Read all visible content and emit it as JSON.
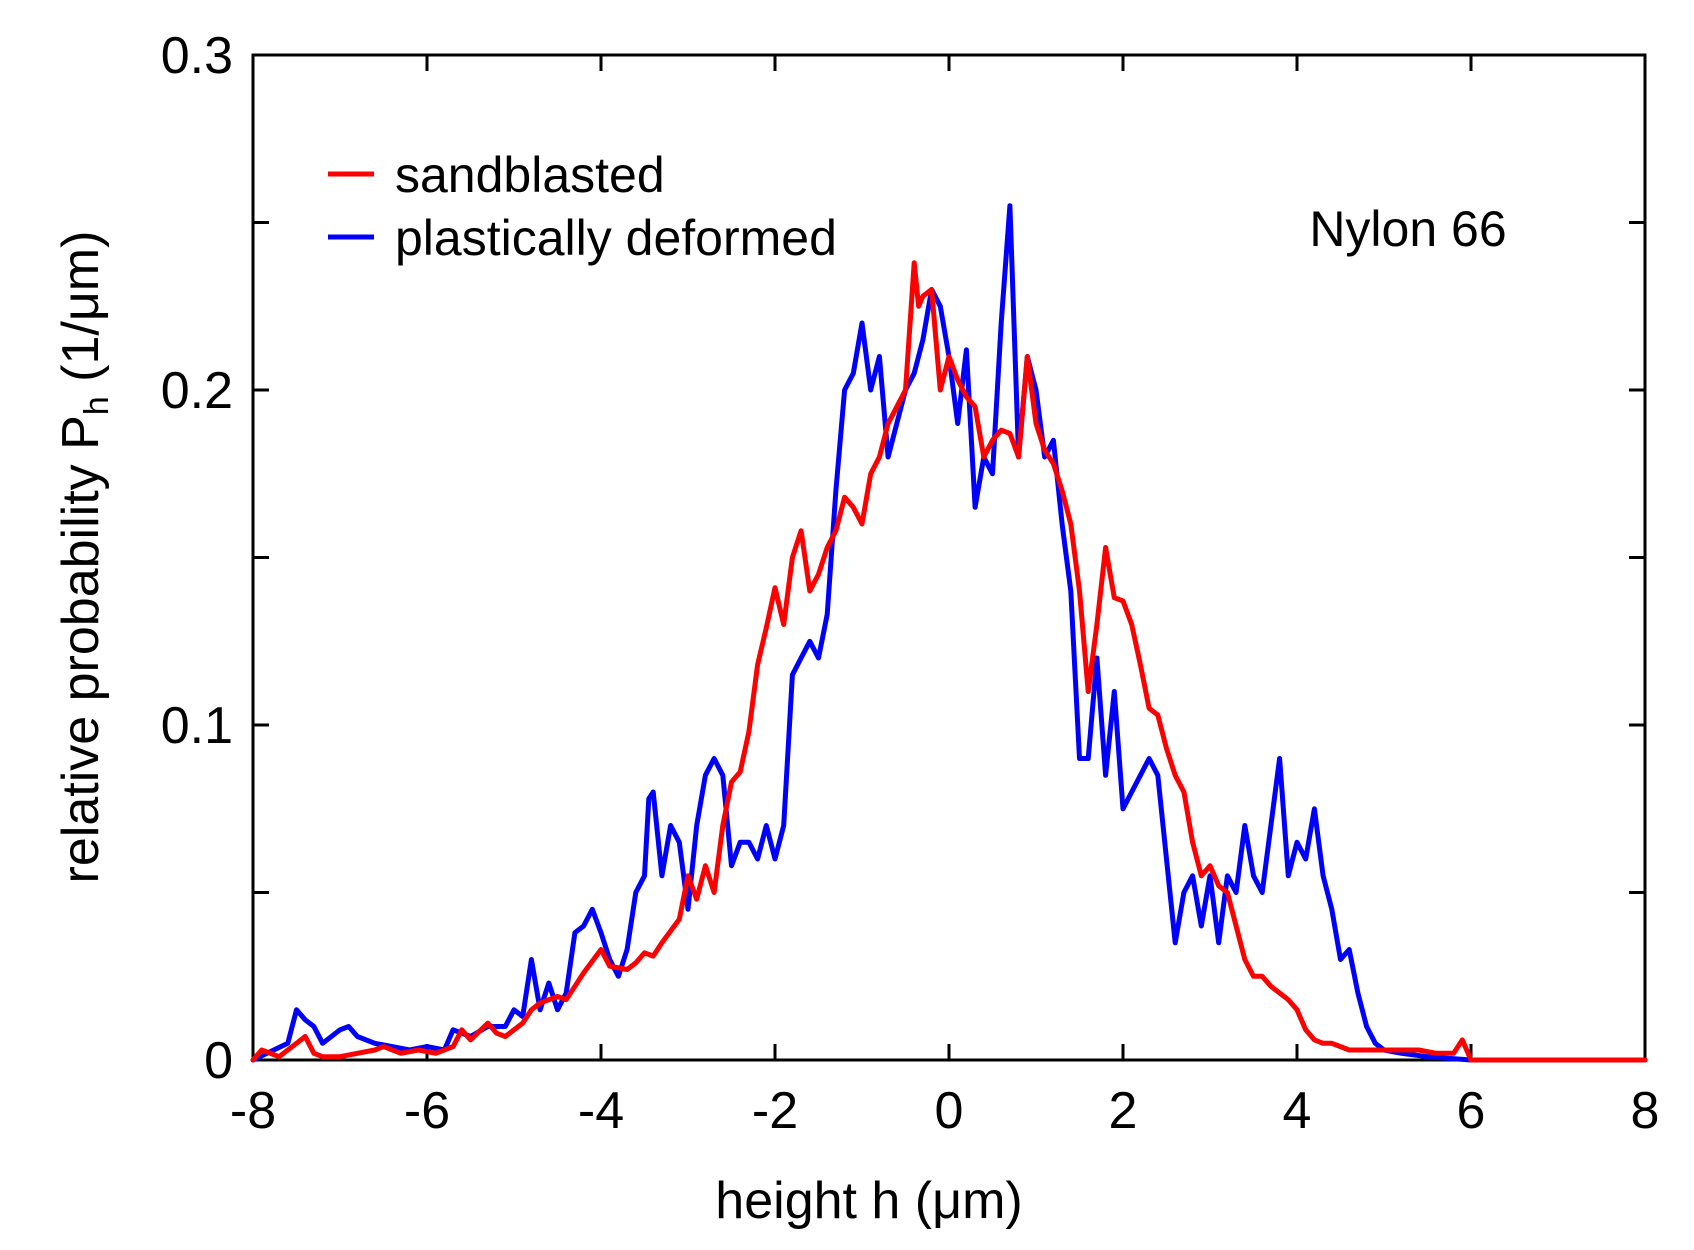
{
  "chart_data": {
    "type": "line",
    "title": "",
    "xlabel": "height h  (μm)",
    "ylabel_main": "relative probability P",
    "ylabel_subscript": "h",
    "ylabel_units": "(1/μm)",
    "xlim": [
      -8,
      8
    ],
    "ylim": [
      0,
      0.3
    ],
    "xticks": [
      -8,
      -6,
      -4,
      -2,
      0,
      2,
      4,
      6,
      8
    ],
    "xtick_labels": [
      "-8",
      "-6",
      "-4",
      "-2",
      "0",
      "2",
      "4",
      "6",
      "8"
    ],
    "yticks": [
      0,
      0.05,
      0.1,
      0.15,
      0.2,
      0.25,
      0.3
    ],
    "ytick_labels": [
      "0",
      "",
      "0.1",
      "",
      "0.2",
      "",
      "0.3"
    ],
    "grid": false,
    "legend_position": "top-left",
    "annotation": "Nylon 66",
    "series": [
      {
        "name": "sandblasted",
        "color": "#ff0000",
        "x": [
          -8.0,
          -7.9,
          -7.7,
          -7.5,
          -7.4,
          -7.3,
          -7.2,
          -7.0,
          -6.8,
          -6.6,
          -6.5,
          -6.3,
          -6.1,
          -5.9,
          -5.7,
          -5.6,
          -5.5,
          -5.3,
          -5.2,
          -5.1,
          -4.9,
          -4.8,
          -4.7,
          -4.5,
          -4.4,
          -4.3,
          -4.2,
          -4.0,
          -3.9,
          -3.7,
          -3.6,
          -3.5,
          -3.4,
          -3.3,
          -3.1,
          -3.0,
          -2.9,
          -2.8,
          -2.7,
          -2.6,
          -2.5,
          -2.4,
          -2.3,
          -2.2,
          -2.1,
          -2.0,
          -1.9,
          -1.8,
          -1.7,
          -1.6,
          -1.5,
          -1.4,
          -1.3,
          -1.2,
          -1.1,
          -1.0,
          -0.9,
          -0.8,
          -0.7,
          -0.6,
          -0.5,
          -0.4,
          -0.35,
          -0.3,
          -0.2,
          -0.1,
          0.0,
          0.1,
          0.2,
          0.3,
          0.4,
          0.5,
          0.6,
          0.7,
          0.8,
          0.9,
          1.0,
          1.1,
          1.2,
          1.3,
          1.4,
          1.5,
          1.6,
          1.7,
          1.8,
          1.9,
          2.0,
          2.1,
          2.2,
          2.3,
          2.4,
          2.5,
          2.6,
          2.7,
          2.8,
          2.9,
          3.0,
          3.1,
          3.2,
          3.3,
          3.4,
          3.5,
          3.6,
          3.7,
          3.8,
          3.9,
          4.0,
          4.1,
          4.2,
          4.3,
          4.4,
          4.5,
          4.6,
          4.7,
          4.8,
          4.9,
          5.0,
          5.2,
          5.4,
          5.6,
          5.8,
          5.9,
          6.0,
          6.5,
          7.0,
          7.5,
          8.0
        ],
        "y": [
          0.0,
          0.003,
          0.001,
          0.005,
          0.007,
          0.002,
          0.001,
          0.001,
          0.002,
          0.003,
          0.004,
          0.002,
          0.003,
          0.002,
          0.004,
          0.009,
          0.006,
          0.011,
          0.008,
          0.007,
          0.011,
          0.015,
          0.017,
          0.019,
          0.018,
          0.022,
          0.026,
          0.033,
          0.028,
          0.027,
          0.029,
          0.032,
          0.031,
          0.035,
          0.042,
          0.055,
          0.048,
          0.058,
          0.05,
          0.07,
          0.083,
          0.086,
          0.098,
          0.118,
          0.129,
          0.141,
          0.13,
          0.15,
          0.158,
          0.14,
          0.145,
          0.153,
          0.158,
          0.168,
          0.165,
          0.16,
          0.175,
          0.18,
          0.19,
          0.195,
          0.2,
          0.238,
          0.225,
          0.228,
          0.23,
          0.2,
          0.21,
          0.203,
          0.198,
          0.195,
          0.18,
          0.185,
          0.188,
          0.187,
          0.18,
          0.21,
          0.19,
          0.182,
          0.178,
          0.17,
          0.16,
          0.14,
          0.11,
          0.13,
          0.153,
          0.138,
          0.137,
          0.13,
          0.118,
          0.105,
          0.103,
          0.093,
          0.085,
          0.08,
          0.065,
          0.055,
          0.058,
          0.052,
          0.05,
          0.04,
          0.03,
          0.025,
          0.025,
          0.022,
          0.02,
          0.018,
          0.015,
          0.009,
          0.006,
          0.005,
          0.005,
          0.004,
          0.003,
          0.003,
          0.003,
          0.003,
          0.003,
          0.003,
          0.003,
          0.002,
          0.002,
          0.006,
          0.0,
          0.0,
          0.0,
          0.0,
          0.0
        ]
      },
      {
        "name": "plastically deformed",
        "color": "#0000ff",
        "x": [
          -8.0,
          -7.6,
          -7.5,
          -7.4,
          -7.3,
          -7.2,
          -7.0,
          -6.9,
          -6.8,
          -6.6,
          -6.4,
          -6.2,
          -6.0,
          -5.8,
          -5.7,
          -5.5,
          -5.3,
          -5.1,
          -5.0,
          -4.9,
          -4.8,
          -4.7,
          -4.6,
          -4.5,
          -4.4,
          -4.3,
          -4.2,
          -4.1,
          -4.0,
          -3.9,
          -3.8,
          -3.7,
          -3.6,
          -3.5,
          -3.45,
          -3.4,
          -3.3,
          -3.2,
          -3.1,
          -3.0,
          -2.9,
          -2.8,
          -2.7,
          -2.6,
          -2.5,
          -2.4,
          -2.3,
          -2.2,
          -2.1,
          -2.0,
          -1.9,
          -1.8,
          -1.7,
          -1.6,
          -1.5,
          -1.4,
          -1.3,
          -1.2,
          -1.1,
          -1.0,
          -0.9,
          -0.8,
          -0.7,
          -0.6,
          -0.5,
          -0.4,
          -0.3,
          -0.2,
          -0.1,
          0.0,
          0.1,
          0.2,
          0.3,
          0.4,
          0.5,
          0.6,
          0.7,
          0.8,
          0.9,
          1.0,
          1.1,
          1.2,
          1.3,
          1.4,
          1.5,
          1.6,
          1.7,
          1.8,
          1.9,
          2.0,
          2.1,
          2.2,
          2.3,
          2.4,
          2.5,
          2.6,
          2.7,
          2.8,
          2.9,
          3.0,
          3.1,
          3.2,
          3.3,
          3.4,
          3.5,
          3.6,
          3.7,
          3.8,
          3.9,
          4.0,
          4.1,
          4.2,
          4.3,
          4.4,
          4.5,
          4.6,
          4.7,
          4.8,
          4.9,
          5.0,
          5.2,
          5.5,
          6.0,
          7.0,
          8.0
        ],
        "y": [
          0.0,
          0.005,
          0.015,
          0.012,
          0.01,
          0.005,
          0.009,
          0.01,
          0.007,
          0.005,
          0.004,
          0.003,
          0.004,
          0.003,
          0.009,
          0.007,
          0.01,
          0.01,
          0.015,
          0.013,
          0.03,
          0.015,
          0.023,
          0.015,
          0.02,
          0.038,
          0.04,
          0.045,
          0.038,
          0.03,
          0.025,
          0.033,
          0.05,
          0.055,
          0.078,
          0.08,
          0.055,
          0.07,
          0.065,
          0.045,
          0.07,
          0.085,
          0.09,
          0.085,
          0.058,
          0.065,
          0.065,
          0.06,
          0.07,
          0.06,
          0.07,
          0.115,
          0.12,
          0.125,
          0.12,
          0.133,
          0.17,
          0.2,
          0.205,
          0.22,
          0.2,
          0.21,
          0.18,
          0.19,
          0.2,
          0.205,
          0.215,
          0.23,
          0.225,
          0.21,
          0.19,
          0.212,
          0.165,
          0.18,
          0.175,
          0.22,
          0.255,
          0.18,
          0.21,
          0.2,
          0.18,
          0.185,
          0.16,
          0.14,
          0.09,
          0.09,
          0.12,
          0.085,
          0.11,
          0.075,
          0.08,
          0.085,
          0.09,
          0.085,
          0.06,
          0.035,
          0.05,
          0.055,
          0.04,
          0.055,
          0.035,
          0.055,
          0.05,
          0.07,
          0.055,
          0.05,
          0.07,
          0.09,
          0.055,
          0.065,
          0.06,
          0.075,
          0.055,
          0.045,
          0.03,
          0.033,
          0.02,
          0.01,
          0.005,
          0.003,
          0.002,
          0.001,
          0.0,
          0.0,
          0.0
        ]
      }
    ]
  }
}
